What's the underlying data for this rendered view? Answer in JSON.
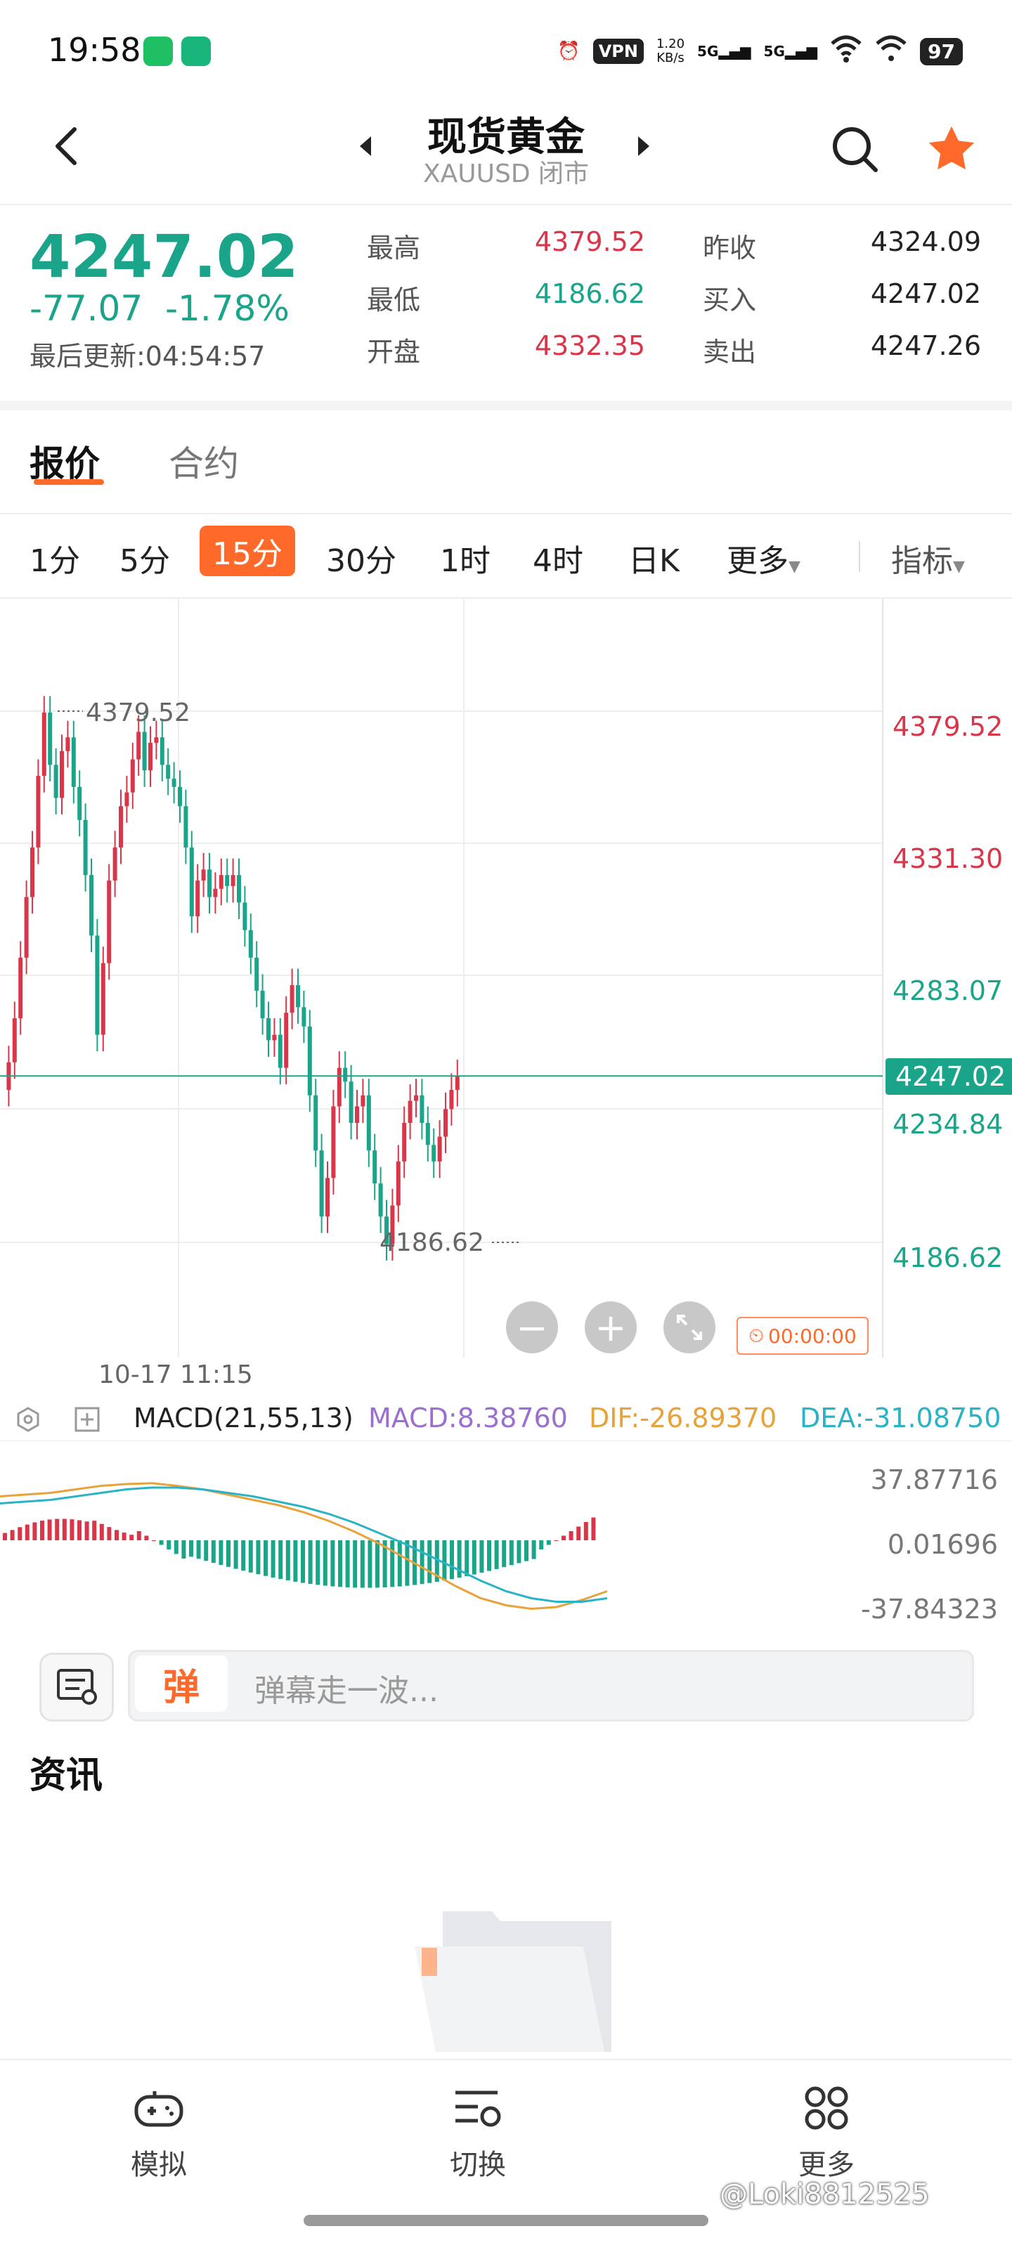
{
  "status_bar": {
    "time": "19:58",
    "vpn": "VPN",
    "net_speed_value": "1.20",
    "net_speed_unit": "KB/s",
    "sig1": "5G",
    "sig2": "5G",
    "battery": "97"
  },
  "header": {
    "title": "现货黄金",
    "subtitle": "XAUUSD 闭市"
  },
  "quote": {
    "last_price": "4247.02",
    "change": "-77.07",
    "change_pct": "-1.78%",
    "updated_label": "最后更新:04:54:57",
    "stats": [
      {
        "label": "最高",
        "value": "4379.52",
        "tone": "red"
      },
      {
        "label": "最低",
        "value": "4186.62",
        "tone": "green"
      },
      {
        "label": "开盘",
        "value": "4332.35",
        "tone": "red"
      },
      {
        "label": "昨收",
        "value": "4324.09",
        "tone": "dark"
      },
      {
        "label": "买入",
        "value": "4247.02",
        "tone": "dark"
      },
      {
        "label": "卖出",
        "value": "4247.26",
        "tone": "dark"
      }
    ]
  },
  "tabs": {
    "quote": "报价",
    "contract": "合约"
  },
  "periods": {
    "items": [
      "1分",
      "5分",
      "15分",
      "30分",
      "1时",
      "4时",
      "日K"
    ],
    "active": "15分",
    "more": "更多",
    "indicator": "指标"
  },
  "chart": {
    "y_labels": [
      {
        "value": "4379.52",
        "tone": "red"
      },
      {
        "value": "4331.30",
        "tone": "red"
      },
      {
        "value": "4283.07",
        "tone": "green"
      },
      {
        "value": "4234.84",
        "tone": "green"
      },
      {
        "value": "4186.62",
        "tone": "green"
      }
    ],
    "current_price": "4247.02",
    "high_marker": "4379.52",
    "low_marker": "4186.62",
    "x_label": "10-17 11:15",
    "timer": "00:00:00",
    "zoom_out": "−",
    "zoom_in": "+"
  },
  "macd": {
    "name": "MACD(21,55,13)",
    "macd_value": "MACD:8.38760",
    "dif_value": "DIF:-26.89370",
    "dea_value": "DEA:-31.08750",
    "axis": [
      "37.87716",
      "0.01696",
      "-37.84323"
    ],
    "colors": {
      "macd": "#9a6fd0",
      "dif": "#e8a23a",
      "dea": "#2ab3c6"
    }
  },
  "barrage": {
    "badge": "弹",
    "placeholder": "弹幕走一波..."
  },
  "news": {
    "title": "资讯"
  },
  "bottom_nav": {
    "items": [
      "模拟",
      "切换",
      "更多"
    ]
  },
  "watermark": "@Loki8812525",
  "colors": {
    "up": "#d9364a",
    "down": "#1aa58a",
    "accent": "#ff6a2b"
  }
}
